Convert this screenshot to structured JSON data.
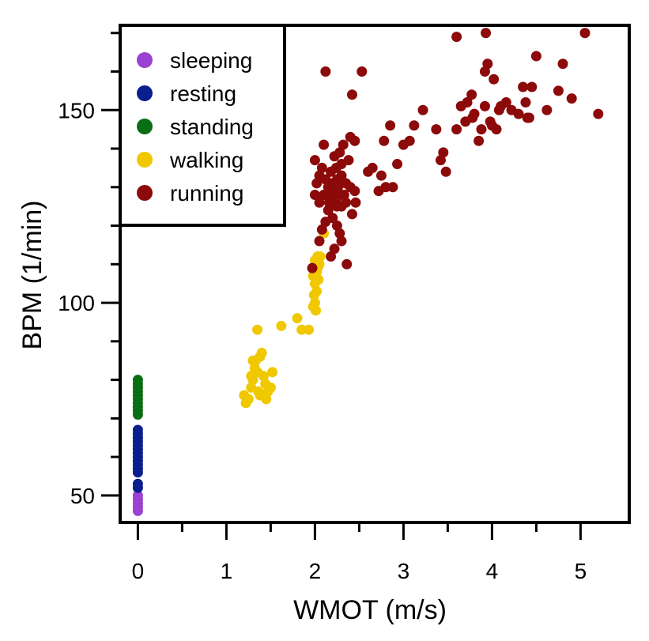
{
  "chart_data": {
    "type": "scatter",
    "xlabel": "WMOT (m/s)",
    "ylabel": "BPM (1/min)",
    "xlim": [
      -0.2,
      5.55
    ],
    "ylim": [
      43,
      172
    ],
    "x_ticks": [
      0,
      1,
      2,
      3,
      4,
      5
    ],
    "x_tick_labels": [
      "0",
      "1",
      "2",
      "3",
      "4",
      "5"
    ],
    "y_ticks": [
      50,
      100,
      150
    ],
    "y_tick_labels": [
      "50",
      "100",
      "150"
    ],
    "grid": false,
    "legend_position": "top-left",
    "series": [
      {
        "name": "sleeping",
        "color": "#9b42d2",
        "points": [
          [
            0,
            46
          ],
          [
            0,
            47
          ],
          [
            0,
            48
          ],
          [
            0,
            49
          ],
          [
            0,
            50
          ]
        ]
      },
      {
        "name": "resting",
        "color": "#0a1e8c",
        "points": [
          [
            0,
            52
          ],
          [
            0,
            53
          ],
          [
            0,
            56
          ],
          [
            0,
            57
          ],
          [
            0,
            58
          ],
          [
            0,
            59
          ],
          [
            0,
            60
          ],
          [
            0,
            61
          ],
          [
            0,
            62
          ],
          [
            0,
            63
          ],
          [
            0,
            64
          ],
          [
            0,
            65
          ],
          [
            0,
            66
          ],
          [
            0,
            67
          ]
        ]
      },
      {
        "name": "standing",
        "color": "#0a6e14",
        "points": [
          [
            0,
            71
          ],
          [
            0,
            72
          ],
          [
            0,
            73
          ],
          [
            0,
            74
          ],
          [
            0,
            75
          ],
          [
            0,
            76
          ],
          [
            0,
            77
          ],
          [
            0,
            78
          ],
          [
            0,
            79
          ],
          [
            0,
            80
          ]
        ]
      },
      {
        "name": "walking",
        "color": "#f0c800",
        "points": [
          [
            1.2,
            76
          ],
          [
            1.22,
            74
          ],
          [
            1.25,
            75
          ],
          [
            1.28,
            78
          ],
          [
            1.3,
            80
          ],
          [
            1.32,
            83
          ],
          [
            1.33,
            85
          ],
          [
            1.35,
            82
          ],
          [
            1.36,
            77
          ],
          [
            1.38,
            86
          ],
          [
            1.4,
            87
          ],
          [
            1.42,
            81
          ],
          [
            1.44,
            79
          ],
          [
            1.45,
            75
          ],
          [
            1.47,
            77
          ],
          [
            1.5,
            78
          ],
          [
            1.52,
            82
          ],
          [
            1.3,
            85
          ],
          [
            1.28,
            81
          ],
          [
            1.35,
            93
          ],
          [
            1.38,
            76
          ],
          [
            1.62,
            94
          ],
          [
            1.8,
            96
          ],
          [
            1.85,
            93
          ],
          [
            1.93,
            93
          ],
          [
            1.98,
            99
          ],
          [
            2.0,
            100
          ],
          [
            2.02,
            103
          ],
          [
            2.0,
            105
          ],
          [
            1.98,
            107
          ],
          [
            2.02,
            108
          ],
          [
            2.03,
            109
          ],
          [
            2.05,
            110
          ],
          [
            2.0,
            111
          ],
          [
            2.03,
            112
          ],
          [
            2.06,
            112
          ],
          [
            2.1,
            118
          ],
          [
            1.99,
            102
          ],
          [
            2.01,
            98
          ],
          [
            2.04,
            106
          ]
        ]
      },
      {
        "name": "running",
        "color": "#8c0a0a",
        "points": [
          [
            1.97,
            109
          ],
          [
            2.05,
            116
          ],
          [
            2.08,
            119
          ],
          [
            2.12,
            121
          ],
          [
            2.2,
            122
          ],
          [
            2.15,
            124
          ],
          [
            2.25,
            125
          ],
          [
            2.18,
            127
          ],
          [
            2.22,
            126
          ],
          [
            2.3,
            125
          ],
          [
            2.28,
            128
          ],
          [
            2.35,
            126
          ],
          [
            2.1,
            128
          ],
          [
            2.0,
            128
          ],
          [
            2.05,
            126
          ],
          [
            2.15,
            130
          ],
          [
            2.2,
            131
          ],
          [
            2.25,
            132
          ],
          [
            2.3,
            133
          ],
          [
            2.35,
            131
          ],
          [
            2.4,
            130
          ],
          [
            2.45,
            129
          ],
          [
            2.18,
            134
          ],
          [
            2.24,
            135
          ],
          [
            2.3,
            136
          ],
          [
            2.38,
            137
          ],
          [
            2.22,
            138
          ],
          [
            2.28,
            139
          ],
          [
            2.32,
            141
          ],
          [
            2.4,
            143
          ],
          [
            2.45,
            142
          ],
          [
            2.1,
            141
          ],
          [
            2.0,
            137
          ],
          [
            2.05,
            133
          ],
          [
            2.12,
            132
          ],
          [
            2.2,
            129
          ],
          [
            2.25,
            120
          ],
          [
            2.28,
            118
          ],
          [
            2.22,
            114
          ],
          [
            2.36,
            110
          ],
          [
            2.18,
            112
          ],
          [
            2.3,
            116
          ],
          [
            2.42,
            123
          ],
          [
            2.46,
            126
          ],
          [
            2.26,
            130
          ],
          [
            2.24,
            127
          ],
          [
            2.16,
            126
          ],
          [
            2.33,
            128
          ],
          [
            2.02,
            131
          ],
          [
            2.08,
            135
          ],
          [
            2.12,
            160
          ],
          [
            2.53,
            160
          ],
          [
            2.42,
            154
          ],
          [
            2.6,
            134
          ],
          [
            2.65,
            135
          ],
          [
            2.72,
            129
          ],
          [
            2.75,
            133
          ],
          [
            2.8,
            130
          ],
          [
            2.78,
            142
          ],
          [
            2.85,
            146
          ],
          [
            2.88,
            130
          ],
          [
            2.93,
            136
          ],
          [
            3.0,
            141
          ],
          [
            3.07,
            142
          ],
          [
            3.12,
            146
          ],
          [
            3.22,
            150
          ],
          [
            3.37,
            145
          ],
          [
            3.42,
            137
          ],
          [
            3.45,
            139
          ],
          [
            3.48,
            134
          ],
          [
            3.6,
            145
          ],
          [
            3.65,
            151
          ],
          [
            3.7,
            147
          ],
          [
            3.72,
            152
          ],
          [
            3.77,
            154
          ],
          [
            3.78,
            148
          ],
          [
            3.8,
            149
          ],
          [
            3.85,
            142
          ],
          [
            3.88,
            145
          ],
          [
            3.92,
            151
          ],
          [
            3.95,
            162
          ],
          [
            3.98,
            147
          ],
          [
            4.0,
            146
          ],
          [
            4.05,
            145
          ],
          [
            4.08,
            150
          ],
          [
            4.1,
            151
          ],
          [
            4.16,
            152
          ],
          [
            4.22,
            150
          ],
          [
            4.3,
            149
          ],
          [
            4.35,
            156
          ],
          [
            4.4,
            148
          ],
          [
            4.45,
            156
          ],
          [
            4.5,
            164
          ],
          [
            4.62,
            150
          ],
          [
            4.75,
            155
          ],
          [
            4.8,
            162
          ],
          [
            4.9,
            153
          ],
          [
            5.05,
            170
          ],
          [
            5.2,
            149
          ],
          [
            3.93,
            170
          ],
          [
            4.02,
            158
          ],
          [
            3.6,
            169
          ],
          [
            3.92,
            160
          ],
          [
            4.38,
            152
          ],
          [
            4.42,
            148
          ]
        ]
      }
    ]
  }
}
